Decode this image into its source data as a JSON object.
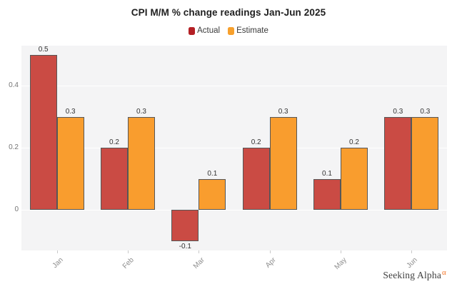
{
  "chart_data": {
    "type": "bar",
    "title": "CPI M/M % change readings Jan-Jun 2025",
    "categories": [
      "Jan",
      "Feb",
      "Mar",
      "Apr",
      "May",
      "Jun"
    ],
    "series": [
      {
        "name": "Actual",
        "values": [
          0.5,
          0.2,
          -0.1,
          0.2,
          0.1,
          0.3
        ],
        "bar_color": "#ca4b44",
        "legend_color": "#b42025"
      },
      {
        "name": "Estimate",
        "values": [
          0.3,
          0.3,
          0.1,
          0.3,
          0.2,
          0.3
        ],
        "bar_color": "#f99d2e",
        "legend_color": "#f7a02c"
      }
    ],
    "xlabel": "",
    "ylabel": "",
    "yticks": [
      0,
      0.2,
      0.4
    ],
    "ylim": [
      -0.131,
      0.529
    ],
    "grid": true,
    "gridline_color": "#ffffff",
    "plot_bg": "#f4f4f5",
    "bar_border_color": "#575757",
    "legend_position": "top",
    "value_labels_shown": true
  },
  "branding": {
    "logo_text": "Seeking Alpha",
    "logo_symbol": "α",
    "logo_symbol_color": "#f4711f"
  }
}
